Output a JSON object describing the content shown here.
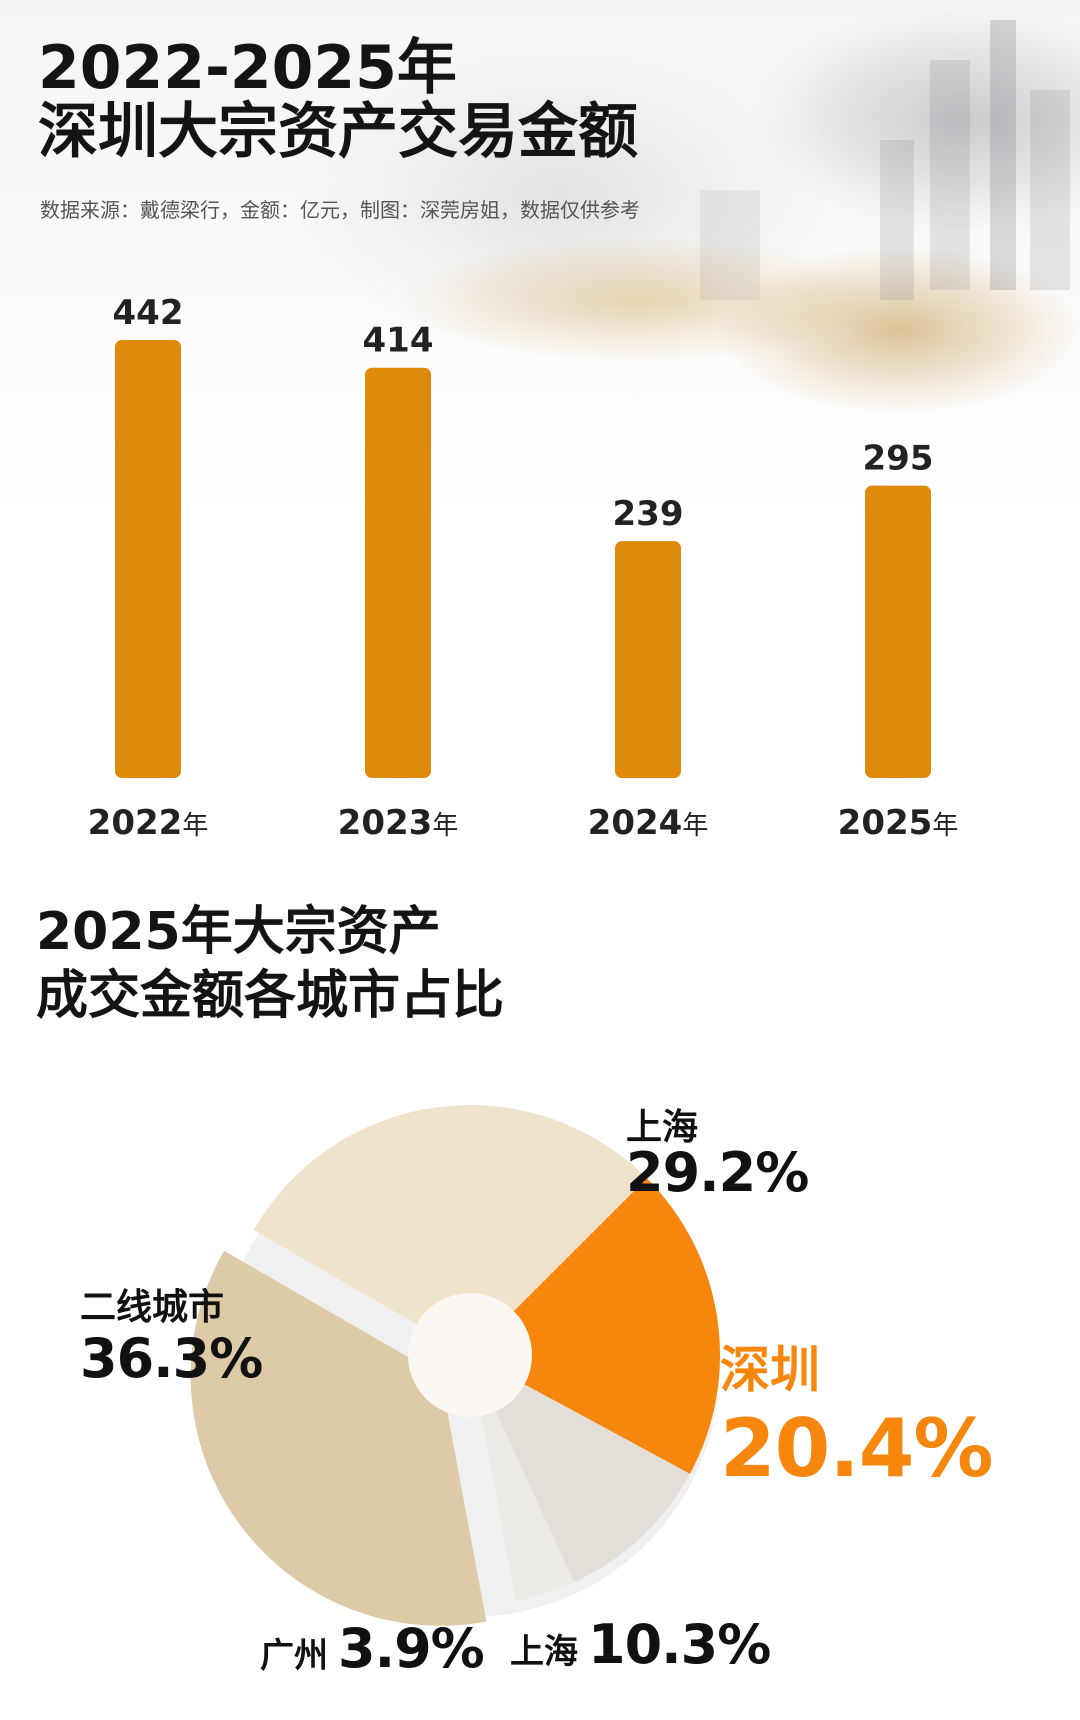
{
  "header": {
    "title_line1": "2022-2025年",
    "title_line2": "深圳大宗资产交易金额",
    "subtitle": "数据来源：戴德梁行，金额：亿元，制图：深莞房姐，数据仅供参考"
  },
  "section2": {
    "title_line1": "2025年大宗资产",
    "title_line2": "成交金额各城市占比"
  },
  "colors": {
    "bar": "#DE8A0B",
    "pie_shenzhen": "#F7860D",
    "pie_shanghai_big": "#EFE4CB",
    "pie_shanghai_small": "#E3DFD8",
    "pie_guangzhou": "#ECEAE7",
    "pie_second_tier": "#DDCBA7",
    "center_dot": "#FBF8F3"
  },
  "chart_data": [
    {
      "type": "bar",
      "title": "深圳大宗资产交易金额",
      "unit": "亿元",
      "categories": [
        "2022",
        "2023",
        "2024",
        "2025"
      ],
      "category_suffix": "年",
      "values": [
        442,
        414,
        239,
        295
      ],
      "ylim": [
        0,
        442
      ],
      "grid": false
    },
    {
      "type": "pie",
      "title": "2025年大宗资产成交金额各城市占比",
      "slices": [
        {
          "label": "上海",
          "value": 29.2,
          "display": "29.2%"
        },
        {
          "label": "深圳",
          "value": 20.4,
          "display": "20.4%"
        },
        {
          "label": "上海",
          "value": 10.3,
          "display": "10.3%"
        },
        {
          "label": "广州",
          "value": 3.9,
          "display": "3.9%"
        },
        {
          "label": "二线城市",
          "value": 36.3,
          "display": "36.3%"
        }
      ],
      "highlight": "深圳",
      "exploded": "二线城市"
    }
  ]
}
